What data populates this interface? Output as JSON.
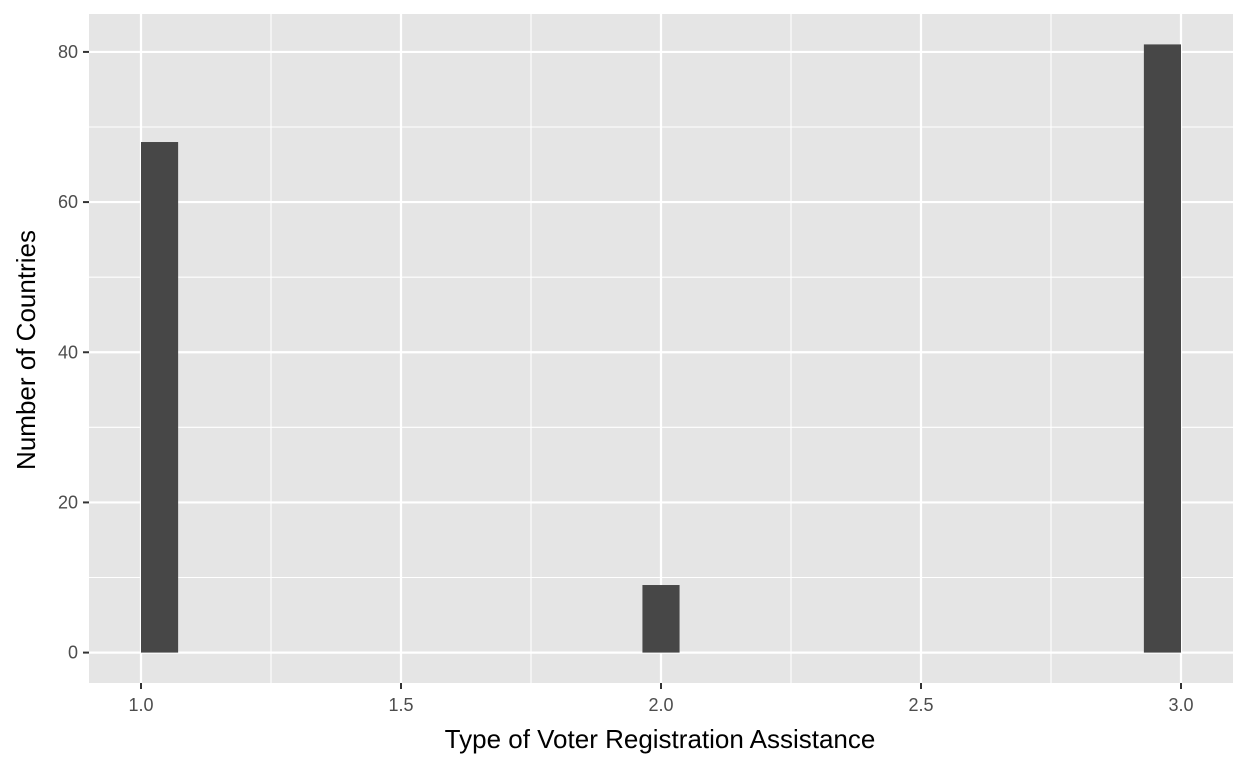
{
  "chart_data": {
    "type": "bar",
    "title": "",
    "xlabel": "Type of Voter Registration Assistance",
    "ylabel": "Number of Countries",
    "bin_width": 0.0714,
    "bars": [
      {
        "x_start": 1.0,
        "x_end": 1.0714,
        "count": 68
      },
      {
        "x_start": 1.9643,
        "x_end": 2.0357,
        "count": 9
      },
      {
        "x_start": 2.9286,
        "x_end": 3.0,
        "count": 81
      }
    ],
    "xlim": [
      0.9,
      3.1
    ],
    "ylim": [
      -4.05,
      85.05
    ],
    "x_ticks": [
      "1.0",
      "1.5",
      "2.0",
      "2.5",
      "3.0"
    ],
    "y_ticks": [
      "0",
      "20",
      "40",
      "60",
      "80"
    ],
    "grid": true,
    "colors": {
      "panel_background": "#e5e5e5",
      "grid": "#ffffff",
      "bar_fill": "#474747"
    }
  }
}
